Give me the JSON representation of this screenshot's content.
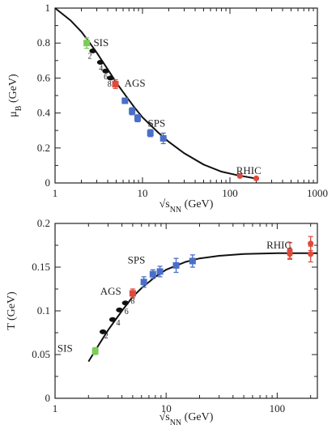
{
  "colors": {
    "SIS": "#7dcc5a",
    "AGS": "#e04a3c",
    "SPS": "#4a6fc8",
    "RHIC": "#e04a3c",
    "theory": "#111111"
  },
  "chart_data": [
    {
      "type": "scatter",
      "xscale": "log",
      "xlim": [
        1,
        1000
      ],
      "ylim": [
        0,
        1
      ],
      "xticks": [
        1,
        10,
        100,
        1000
      ],
      "xtick_labels": [
        "1",
        "10",
        "100",
        "1000"
      ],
      "yticks": [
        0,
        0.2,
        0.4,
        0.6,
        0.8,
        1
      ],
      "ytick_labels": [
        "0",
        "0.2",
        "0.4",
        "0.6",
        "0.8",
        "1"
      ],
      "xlabel": "√s_NN (GeV)",
      "ylabel": "μ_B (GeV)",
      "series": [
        {
          "name": "SIS",
          "points": [
            {
              "x": 2.3,
              "y": 0.8,
              "err": 0.03
            }
          ]
        },
        {
          "name": "AGS",
          "points": [
            {
              "x": 4.9,
              "y": 0.565,
              "err": 0.025
            }
          ]
        },
        {
          "name": "SPS",
          "points": [
            {
              "x": 6.3,
              "y": 0.47,
              "err": 0.015
            },
            {
              "x": 7.6,
              "y": 0.41,
              "err": 0.02
            },
            {
              "x": 8.8,
              "y": 0.37,
              "err": 0.02
            },
            {
              "x": 12.3,
              "y": 0.285,
              "err": 0.02
            },
            {
              "x": 17.3,
              "y": 0.255,
              "err": 0.03
            }
          ]
        },
        {
          "name": "RHIC",
          "points": [
            {
              "x": 130,
              "y": 0.04,
              "err": 0.005
            },
            {
              "x": 200,
              "y": 0.026,
              "err": 0.005
            }
          ]
        },
        {
          "name": "",
          "marker": "black",
          "points": [
            {
              "x": 2.7,
              "y": 0.755
            },
            {
              "x": 3.3,
              "y": 0.69
            },
            {
              "x": 3.8,
              "y": 0.64
            },
            {
              "x": 4.3,
              "y": 0.6
            }
          ]
        }
      ],
      "curve": {
        "x": [
          1,
          1.5,
          2,
          2.5,
          3,
          4,
          5,
          6,
          8,
          10,
          15,
          20,
          30,
          50,
          80,
          120,
          200
        ],
        "y": [
          1,
          0.93,
          0.865,
          0.8,
          0.745,
          0.65,
          0.575,
          0.52,
          0.435,
          0.375,
          0.29,
          0.235,
          0.17,
          0.105,
          0.065,
          0.045,
          0.025
        ]
      },
      "labels": [
        {
          "text": "SIS",
          "x": 2.75,
          "y": 0.8
        },
        {
          "text": "AGS",
          "x": 6.2,
          "y": 0.57
        },
        {
          "text": "SPS",
          "x": 11.5,
          "y": 0.34
        },
        {
          "text": "RHIC",
          "x": 118,
          "y": 0.07
        }
      ],
      "energy_labels": [
        {
          "text": "2",
          "x": 2.5,
          "y": 0.73
        },
        {
          "text": "4",
          "x": 3.35,
          "y": 0.66
        },
        {
          "text": "6",
          "x": 3.8,
          "y": 0.61
        },
        {
          "text": "8",
          "x": 4.2,
          "y": 0.57
        }
      ]
    },
    {
      "type": "scatter",
      "xscale": "log",
      "xlim": [
        1,
        230
      ],
      "ylim": [
        0,
        0.2
      ],
      "xticks": [
        1,
        10,
        100
      ],
      "xtick_labels": [
        "1",
        "10",
        "100"
      ],
      "yticks": [
        0,
        0.05,
        0.1,
        0.15,
        0.2
      ],
      "ytick_labels": [
        "0",
        "0.05",
        "0.1",
        "0.15",
        "0.2"
      ],
      "xlabel": "√s_NN (GeV)",
      "ylabel": "T (GeV)",
      "series": [
        {
          "name": "SIS",
          "points": [
            {
              "x": 2.3,
              "y": 0.054,
              "err": 0.004
            }
          ]
        },
        {
          "name": "AGS",
          "points": [
            {
              "x": 5.0,
              "y": 0.12,
              "err": 0.005
            }
          ]
        },
        {
          "name": "SPS",
          "points": [
            {
              "x": 6.3,
              "y": 0.133,
              "err": 0.006
            },
            {
              "x": 7.6,
              "y": 0.142,
              "err": 0.005
            },
            {
              "x": 8.8,
              "y": 0.145,
              "err": 0.006
            },
            {
              "x": 12.3,
              "y": 0.152,
              "err": 0.008
            },
            {
              "x": 17.3,
              "y": 0.157,
              "err": 0.007
            }
          ]
        },
        {
          "name": "RHIC",
          "points": [
            {
              "x": 130,
              "y": 0.169,
              "err": 0.009
            },
            {
              "x": 130,
              "y": 0.165,
              "err": 0.006
            },
            {
              "x": 200,
              "y": 0.177,
              "err": 0.008
            },
            {
              "x": 200,
              "y": 0.165,
              "err": 0.009
            }
          ]
        },
        {
          "name": "",
          "marker": "black",
          "points": [
            {
              "x": 2.7,
              "y": 0.076
            },
            {
              "x": 3.3,
              "y": 0.09
            },
            {
              "x": 3.8,
              "y": 0.101
            },
            {
              "x": 4.3,
              "y": 0.109
            }
          ]
        }
      ],
      "curve": {
        "x": [
          2,
          2.5,
          3,
          4,
          5,
          6,
          8,
          10,
          15,
          20,
          30,
          50,
          100,
          230
        ],
        "y": [
          0.042,
          0.062,
          0.078,
          0.1,
          0.116,
          0.126,
          0.139,
          0.147,
          0.156,
          0.16,
          0.163,
          0.165,
          0.166,
          0.166
        ]
      },
      "labels": [
        {
          "text": "SIS",
          "x": 1.05,
          "y": 0.057
        },
        {
          "text": "AGS",
          "x": 2.55,
          "y": 0.122
        },
        {
          "text": "SPS",
          "x": 4.5,
          "y": 0.158
        },
        {
          "text": "RHIC",
          "x": 80,
          "y": 0.175
        }
      ],
      "energy_labels": [
        {
          "text": "2",
          "x": 2.9,
          "y": 0.072
        },
        {
          "text": "4",
          "x": 3.7,
          "y": 0.087
        },
        {
          "text": "6",
          "x": 4.4,
          "y": 0.1
        },
        {
          "text": "8",
          "x": 5.0,
          "y": 0.112
        }
      ]
    }
  ]
}
